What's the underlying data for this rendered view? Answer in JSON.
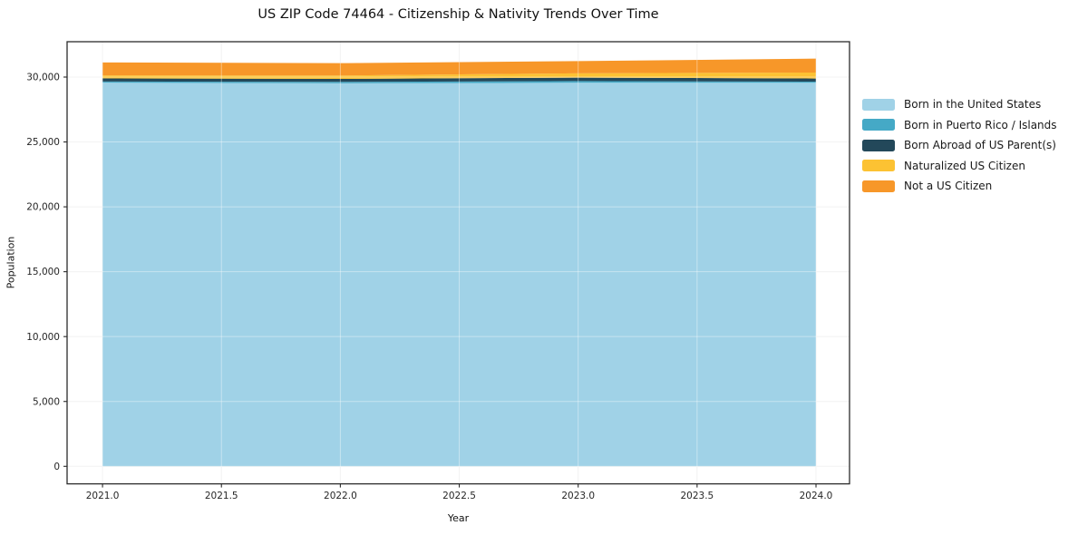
{
  "figure": {
    "title": "US ZIP Code 74464 - Citizenship & Nativity Trends Over Time"
  },
  "chart_data": {
    "type": "area",
    "stacked": true,
    "title": "US ZIP Code 74464 - Citizenship & Nativity Trends Over Time",
    "xlabel": "Year",
    "ylabel": "Population",
    "x": [
      2021,
      2022,
      2023,
      2024
    ],
    "series": [
      {
        "name": "Born in the United States",
        "color": "#A0D2E7",
        "values": [
          29570,
          29520,
          29560,
          29560
        ]
      },
      {
        "name": "Born in Puerto Rico / Islands",
        "color": "#45A9C6",
        "values": [
          90,
          110,
          130,
          90
        ]
      },
      {
        "name": "Born Abroad of US Parent(s)",
        "color": "#23485A",
        "values": [
          240,
          230,
          270,
          240
        ]
      },
      {
        "name": "Naturalized US Citizen",
        "color": "#FCC233",
        "values": [
          230,
          260,
          330,
          460
        ]
      },
      {
        "name": "Not a US Citizen",
        "color": "#F79729",
        "values": [
          1000,
          950,
          940,
          1070
        ]
      }
    ],
    "xlim": [
      2020.851,
      2024.141
    ],
    "ylim": [
      -1350,
      32725
    ],
    "x_ticks": {
      "values": [
        2021.0,
        2021.5,
        2022.0,
        2022.5,
        2023.0,
        2023.5,
        2024.0
      ],
      "labels": [
        "2021.0",
        "2021.5",
        "2022.0",
        "2022.5",
        "2023.0",
        "2023.5",
        "2024.0"
      ]
    },
    "y_ticks": {
      "values": [
        0,
        5000,
        10000,
        15000,
        20000,
        25000,
        30000
      ],
      "labels": [
        "0",
        "5,000",
        "10,000",
        "15,000",
        "20,000",
        "25,000",
        "30,000"
      ]
    },
    "grid": true,
    "legend_position": "outside-right",
    "grid_color_under": "#ececec",
    "grid_color_over": "rgba(255,255,255,0.40)",
    "spine_color": "#2b2b2b",
    "tick_label_color": "#262626"
  }
}
